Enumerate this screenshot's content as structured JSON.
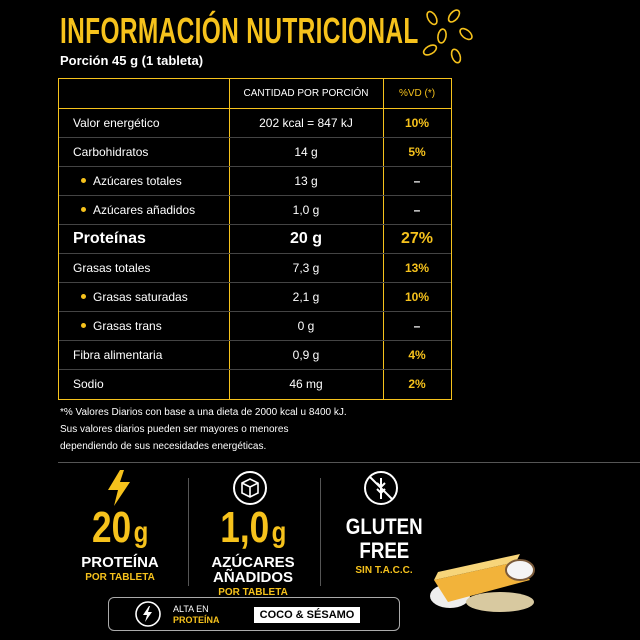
{
  "header": {
    "title": "INFORMACIÓN NUTRICIONAL",
    "portion": "Porción 45 g (1 tableta)"
  },
  "table": {
    "columns": [
      "CANTIDAD POR PORCIÓN",
      "%VD (*)"
    ],
    "rows": [
      {
        "label": "Valor energético",
        "amount": "202 kcal = 847 kJ",
        "vd": "10%"
      },
      {
        "label": "Carbohidratos",
        "amount": "14 g",
        "vd": "5%"
      },
      {
        "label": "Azúcares totales",
        "amount": "13 g",
        "vd": "–",
        "sub": true
      },
      {
        "label": "Azúcares añadidos",
        "amount": "1,0 g",
        "vd": "–",
        "sub": true
      },
      {
        "label": "Proteínas",
        "amount": "20 g",
        "vd": "27%",
        "emphasis": true
      },
      {
        "label": "Grasas totales",
        "amount": "7,3 g",
        "vd": "13%"
      },
      {
        "label": "Grasas saturadas",
        "amount": "2,1 g",
        "vd": "10%",
        "sub": true
      },
      {
        "label": "Grasas trans",
        "amount": "0 g",
        "vd": "–",
        "sub": true
      },
      {
        "label": "Fibra alimentaria",
        "amount": "0,9 g",
        "vd": "4%"
      },
      {
        "label": "Sodio",
        "amount": "46 mg",
        "vd": "2%"
      }
    ]
  },
  "footnote": [
    "*% Valores Diarios con base a una dieta de 2000 kcal u 8400 kJ.",
    "Sus valores diarios pueden ser mayores o menores",
    "dependiendo de sus necesidades energéticas."
  ],
  "badges": [
    {
      "value": "20",
      "unit": "g",
      "lines": [
        "PROTEÍNA"
      ],
      "sub": "POR TABLETA"
    },
    {
      "value": "1,0",
      "unit": "g",
      "lines": [
        "AZÚCARES",
        "AÑADIDOS"
      ],
      "sub": "POR TABLETA"
    },
    {
      "lines": [
        "GLUTEN",
        "FREE"
      ],
      "sub": "SIN T.A.C.C."
    }
  ],
  "footer": {
    "claim": [
      "ALTA EN",
      "PROTEÍNA"
    ],
    "flavor": "COCO & SÉSAMO"
  }
}
